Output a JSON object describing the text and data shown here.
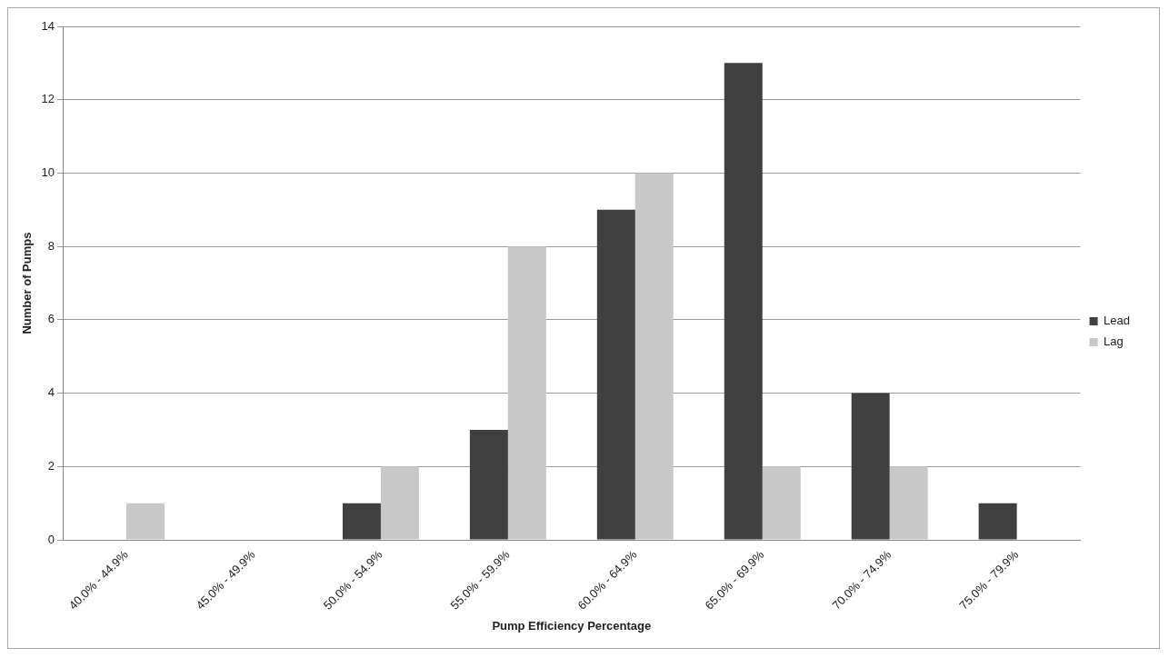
{
  "chart_data": {
    "type": "bar",
    "xlabel": "Pump Efficiency Percentage",
    "ylabel": "Number of Pumps",
    "categories": [
      "40.0% - 44.9%",
      "45.0% - 49.9%",
      "50.0% - 54.9%",
      "55.0% - 59.9%",
      "60.0% - 64.9%",
      "65.0% - 69.9%",
      "70.0% - 74.9%",
      "75.0% - 79.9%"
    ],
    "series": [
      {
        "name": "Lead",
        "color": "#404040",
        "values": [
          0,
          0,
          1,
          3,
          9,
          13,
          4,
          1
        ]
      },
      {
        "name": "Lag",
        "color": "#c8c8c8",
        "values": [
          1,
          0,
          2,
          8,
          10,
          2,
          2,
          0
        ]
      }
    ],
    "ylim": [
      0,
      14
    ],
    "yticks": [
      0,
      2,
      4,
      6,
      8,
      10,
      12,
      14
    ],
    "grid": "y",
    "legend": "right"
  }
}
